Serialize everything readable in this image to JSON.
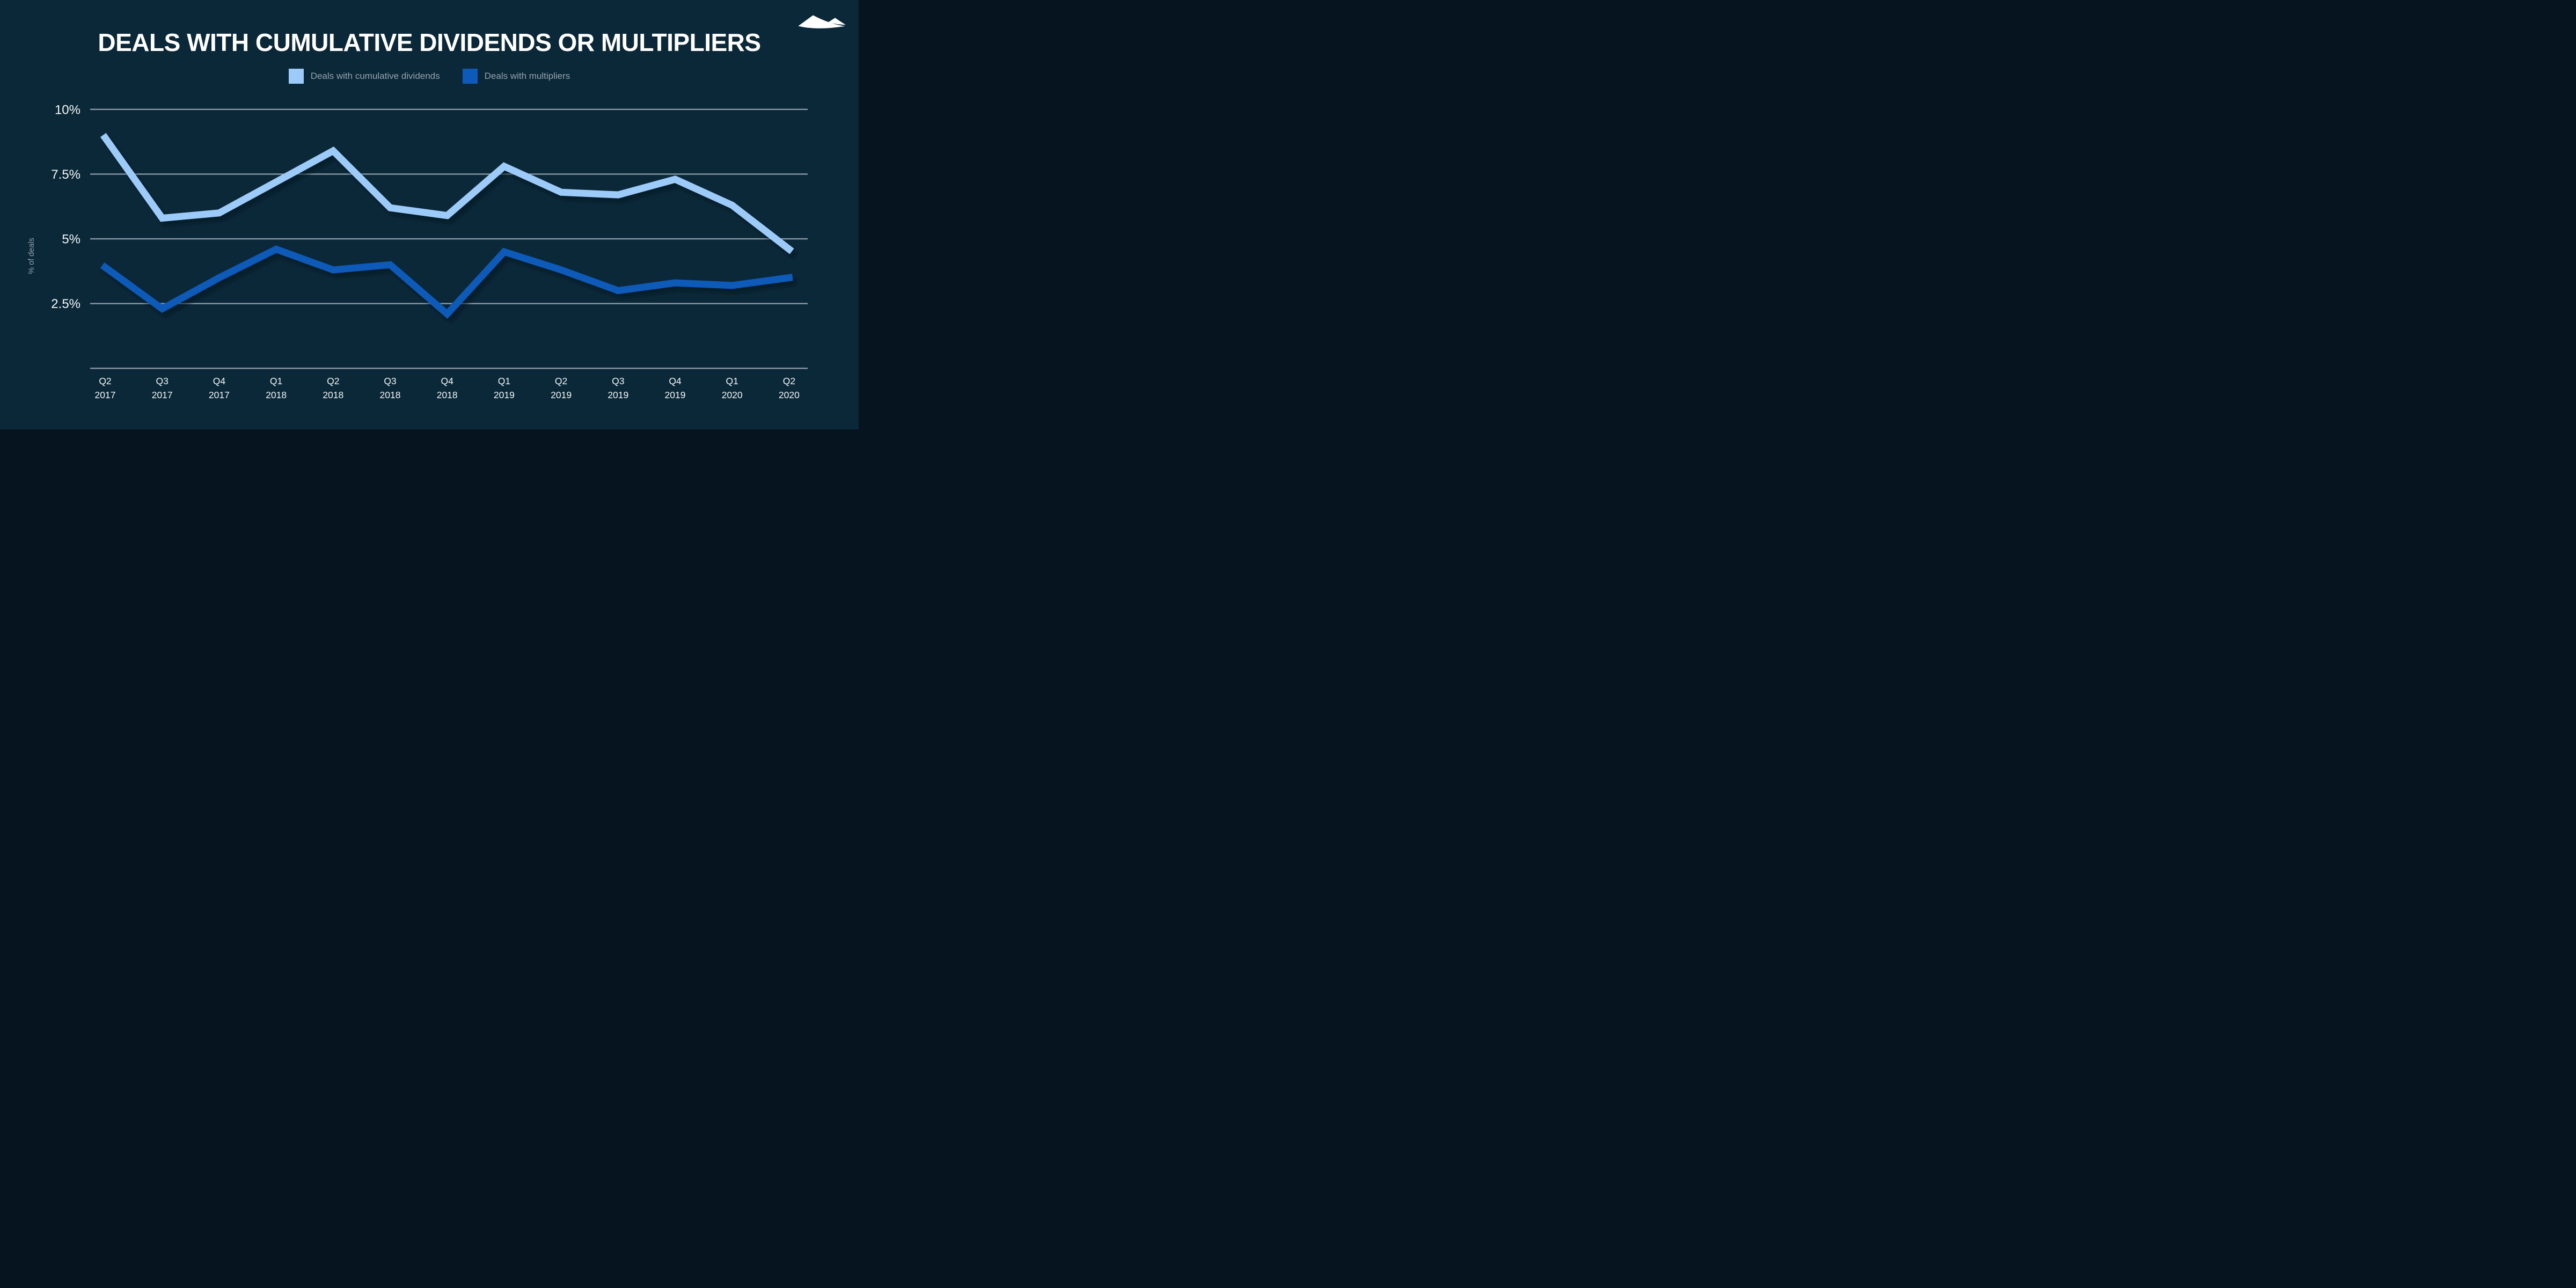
{
  "header": {
    "title": "DEALS WITH CUMULATIVE DIVIDENDS OR MULTIPLIERS"
  },
  "legend": {
    "items": [
      {
        "label": "Deals with cumulative dividends",
        "color": "#9dcbf9"
      },
      {
        "label": "Deals with multipliers",
        "color": "#0e5ab8"
      }
    ]
  },
  "icons": {
    "logo": "mountain-peaks-logo"
  },
  "palette": {
    "background": "#0b2838",
    "gridline": "#8b99a4",
    "tick_label": "#f2f6f8",
    "muted_label": "#95a3af",
    "title": "#ffffff",
    "logo": "#ffffff",
    "series_light": "#9dcbf9",
    "series_dark": "#0e5ab8"
  },
  "chart_data": {
    "type": "line",
    "title": "DEALS WITH CUMULATIVE DIVIDENDS OR MULTIPLIERS",
    "xlabel": "",
    "ylabel": "% of deals",
    "ylim": [
      0,
      10.5
    ],
    "grid": true,
    "legend_position": "top",
    "yticks": [
      {
        "value": 10,
        "label": "10%"
      },
      {
        "value": 7.5,
        "label": "7.5%"
      },
      {
        "value": 5,
        "label": "5%"
      },
      {
        "value": 2.5,
        "label": "2.5%"
      }
    ],
    "categories": [
      {
        "quarter": "Q2",
        "year": "2017"
      },
      {
        "quarter": "Q3",
        "year": "2017"
      },
      {
        "quarter": "Q4",
        "year": "2017"
      },
      {
        "quarter": "Q1",
        "year": "2018"
      },
      {
        "quarter": "Q2",
        "year": "2018"
      },
      {
        "quarter": "Q3",
        "year": "2018"
      },
      {
        "quarter": "Q4",
        "year": "2018"
      },
      {
        "quarter": "Q1",
        "year": "2019"
      },
      {
        "quarter": "Q2",
        "year": "2019"
      },
      {
        "quarter": "Q3",
        "year": "2019"
      },
      {
        "quarter": "Q4",
        "year": "2019"
      },
      {
        "quarter": "Q1",
        "year": "2020"
      },
      {
        "quarter": "Q2",
        "year": "2020"
      }
    ],
    "series": [
      {
        "name": "Deals with cumulative dividends",
        "color": "#9dcbf9",
        "values": [
          8.9,
          5.8,
          6.0,
          7.2,
          8.4,
          6.2,
          5.9,
          7.8,
          6.8,
          6.7,
          7.3,
          6.3,
          4.6
        ]
      },
      {
        "name": "Deals with multipliers",
        "color": "#0e5ab8",
        "values": [
          3.9,
          2.3,
          3.5,
          4.6,
          3.8,
          4.0,
          2.1,
          4.5,
          3.8,
          3.0,
          3.3,
          3.2,
          3.5
        ]
      }
    ]
  }
}
